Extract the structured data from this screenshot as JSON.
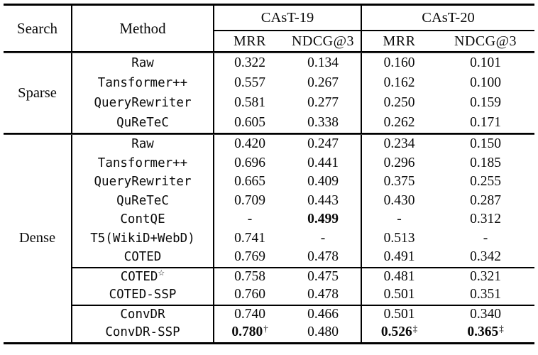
{
  "colors": {
    "background": "#ffffff",
    "text": "#0a0a0a",
    "rule": "#000000"
  },
  "table": {
    "headers": {
      "search": "Search",
      "method": "Method",
      "group1": "CAsT-19",
      "group2": "CAsT-20",
      "mrr": "MRR",
      "ndcg": "NDCG@3"
    },
    "sections": [
      {
        "label": "Sparse",
        "rows": [
          {
            "method": "Raw",
            "values": [
              {
                "t": "0.322"
              },
              {
                "t": "0.134"
              },
              {
                "t": "0.160"
              },
              {
                "t": "0.101"
              }
            ]
          },
          {
            "method": "Tansformer++",
            "values": [
              {
                "t": "0.557"
              },
              {
                "t": "0.267"
              },
              {
                "t": "0.162"
              },
              {
                "t": "0.100"
              }
            ]
          },
          {
            "method": "QueryRewriter",
            "values": [
              {
                "t": "0.581"
              },
              {
                "t": "0.277"
              },
              {
                "t": "0.250"
              },
              {
                "t": "0.159"
              }
            ]
          },
          {
            "method": "QuReTeC",
            "values": [
              {
                "t": "0.605"
              },
              {
                "t": "0.338"
              },
              {
                "t": "0.262"
              },
              {
                "t": "0.171"
              }
            ]
          }
        ]
      },
      {
        "label": "Dense",
        "rows": [
          {
            "method": "Raw",
            "values": [
              {
                "t": "0.420"
              },
              {
                "t": "0.247"
              },
              {
                "t": "0.234"
              },
              {
                "t": "0.150"
              }
            ]
          },
          {
            "method": "Tansformer++",
            "values": [
              {
                "t": "0.696"
              },
              {
                "t": "0.441"
              },
              {
                "t": "0.296"
              },
              {
                "t": "0.185"
              }
            ]
          },
          {
            "method": "QueryRewriter",
            "values": [
              {
                "t": "0.665"
              },
              {
                "t": "0.409"
              },
              {
                "t": "0.375"
              },
              {
                "t": "0.255"
              }
            ]
          },
          {
            "method": "QuReTeC",
            "values": [
              {
                "t": "0.709"
              },
              {
                "t": "0.443"
              },
              {
                "t": "0.430"
              },
              {
                "t": "0.287"
              }
            ]
          },
          {
            "method": "ContQE",
            "values": [
              {
                "t": "-"
              },
              {
                "t": "0.499",
                "bold": true
              },
              {
                "t": "-"
              },
              {
                "t": "0.312"
              }
            ]
          },
          {
            "method": "T5(WikiD+WebD)",
            "values": [
              {
                "t": "0.741"
              },
              {
                "t": "-"
              },
              {
                "t": "0.513"
              },
              {
                "t": "-"
              }
            ]
          },
          {
            "method": "COTED",
            "values": [
              {
                "t": "0.769"
              },
              {
                "t": "0.478"
              },
              {
                "t": "0.491"
              },
              {
                "t": "0.342"
              }
            ]
          },
          {
            "method": "COTED",
            "method_sup": "☆",
            "rule_above": true,
            "values": [
              {
                "t": "0.758"
              },
              {
                "t": "0.475"
              },
              {
                "t": "0.481"
              },
              {
                "t": "0.321"
              }
            ]
          },
          {
            "method": "COTED-SSP",
            "values": [
              {
                "t": "0.760"
              },
              {
                "t": "0.478"
              },
              {
                "t": "0.501"
              },
              {
                "t": "0.351"
              }
            ]
          },
          {
            "method": "ConvDR",
            "rule_above": true,
            "values": [
              {
                "t": "0.740"
              },
              {
                "t": "0.466"
              },
              {
                "t": "0.501"
              },
              {
                "t": "0.340"
              }
            ]
          },
          {
            "method": "ConvDR-SSP",
            "values": [
              {
                "t": "0.780",
                "bold": true,
                "sup": "†"
              },
              {
                "t": "0.480"
              },
              {
                "t": "0.526",
                "bold": true,
                "sup": "‡"
              },
              {
                "t": "0.365",
                "bold": true,
                "sup": "‡"
              }
            ]
          }
        ]
      }
    ]
  }
}
